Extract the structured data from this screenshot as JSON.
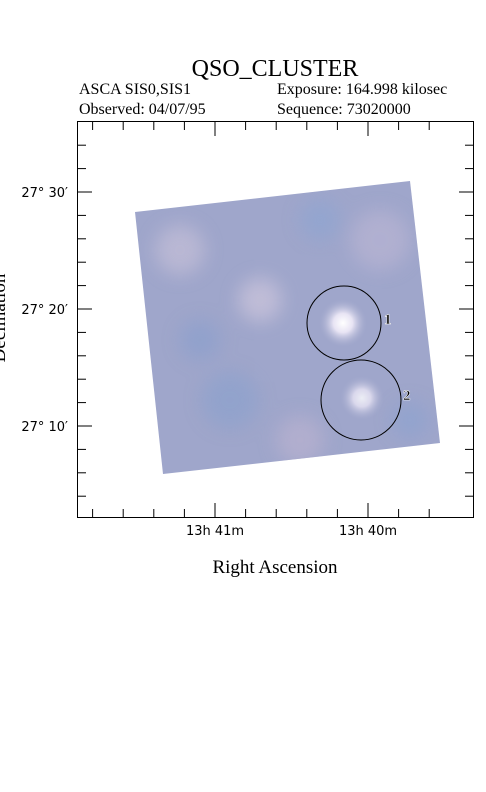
{
  "header": {
    "title": "QSO_CLUSTER",
    "instrument": "ASCA SIS0,SIS1",
    "exposure": "Exposure: 164.998 kilosec",
    "observed": "Observed: 04/07/95",
    "sequence": "Sequence: 73020000"
  },
  "axes": {
    "y_label": "Declination",
    "x_label": "Right Ascension",
    "y_ticks": [
      "27° 30′",
      "27° 20′",
      "27° 10′"
    ],
    "x_ticks": [
      "13h 41m",
      "13h 40m"
    ]
  },
  "regions": [
    {
      "label": "1"
    },
    {
      "label": "2"
    }
  ]
}
